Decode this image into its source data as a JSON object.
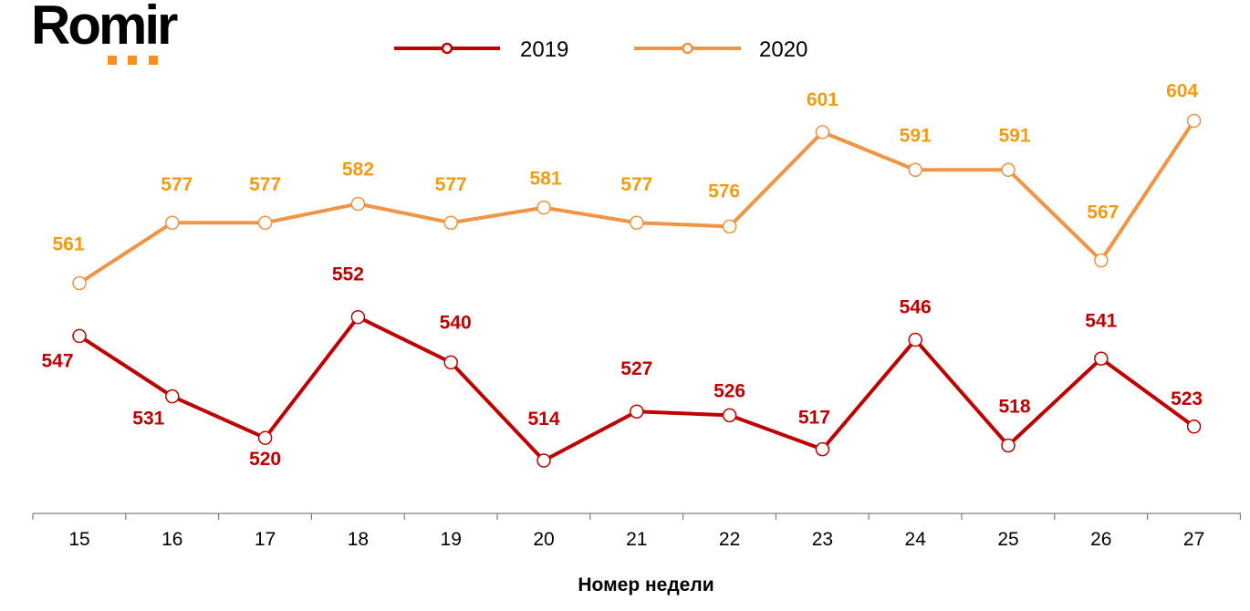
{
  "logo": {
    "text": "Romir",
    "accent": "#f7901e"
  },
  "chart_data": {
    "type": "line",
    "title": "",
    "xlabel": "Номер недели",
    "ylabel": "",
    "x": [
      15,
      16,
      17,
      18,
      19,
      20,
      21,
      22,
      23,
      24,
      25,
      26,
      27
    ],
    "ylim": [
      500,
      636
    ],
    "grid": false,
    "legend_position": "top",
    "series": [
      {
        "name": "2019",
        "color": "#c00000",
        "values": [
          547,
          531,
          520,
          552,
          540,
          514,
          527,
          526,
          517,
          546,
          518,
          541,
          523
        ]
      },
      {
        "name": "2020",
        "color": "#f09446",
        "label_color": "#f39c12",
        "values": [
          561,
          577,
          577,
          582,
          577,
          581,
          577,
          576,
          601,
          591,
          591,
          567,
          604
        ]
      }
    ]
  }
}
